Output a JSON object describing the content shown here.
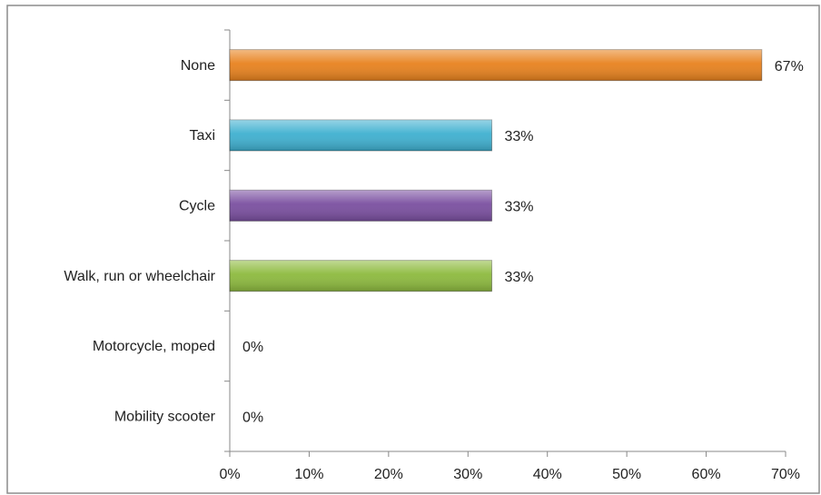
{
  "chart_data": {
    "type": "bar",
    "orientation": "horizontal",
    "categories": [
      "None",
      "Taxi",
      "Cycle",
      "Walk, run or wheelchair",
      "Motorcycle, moped",
      "Mobility scooter"
    ],
    "values": [
      67,
      33,
      33,
      33,
      0,
      0
    ],
    "value_labels": [
      "67%",
      "33%",
      "33%",
      "33%",
      "0%",
      "0%"
    ],
    "colors": [
      "#e8821e",
      "#3fb0d0",
      "#7a4fa0",
      "#8dba3e",
      "#9bbb59",
      "#9bbb59"
    ],
    "xlim": [
      0,
      70
    ],
    "xticks": [
      {
        "value": 0,
        "label": "0%"
      },
      {
        "value": 10,
        "label": "10%"
      },
      {
        "value": 20,
        "label": "20%"
      },
      {
        "value": 30,
        "label": "30%"
      },
      {
        "value": 40,
        "label": "40%"
      },
      {
        "value": 50,
        "label": "50%"
      },
      {
        "value": 60,
        "label": "60%"
      },
      {
        "value": 70,
        "label": "70%"
      }
    ],
    "grid": false
  }
}
